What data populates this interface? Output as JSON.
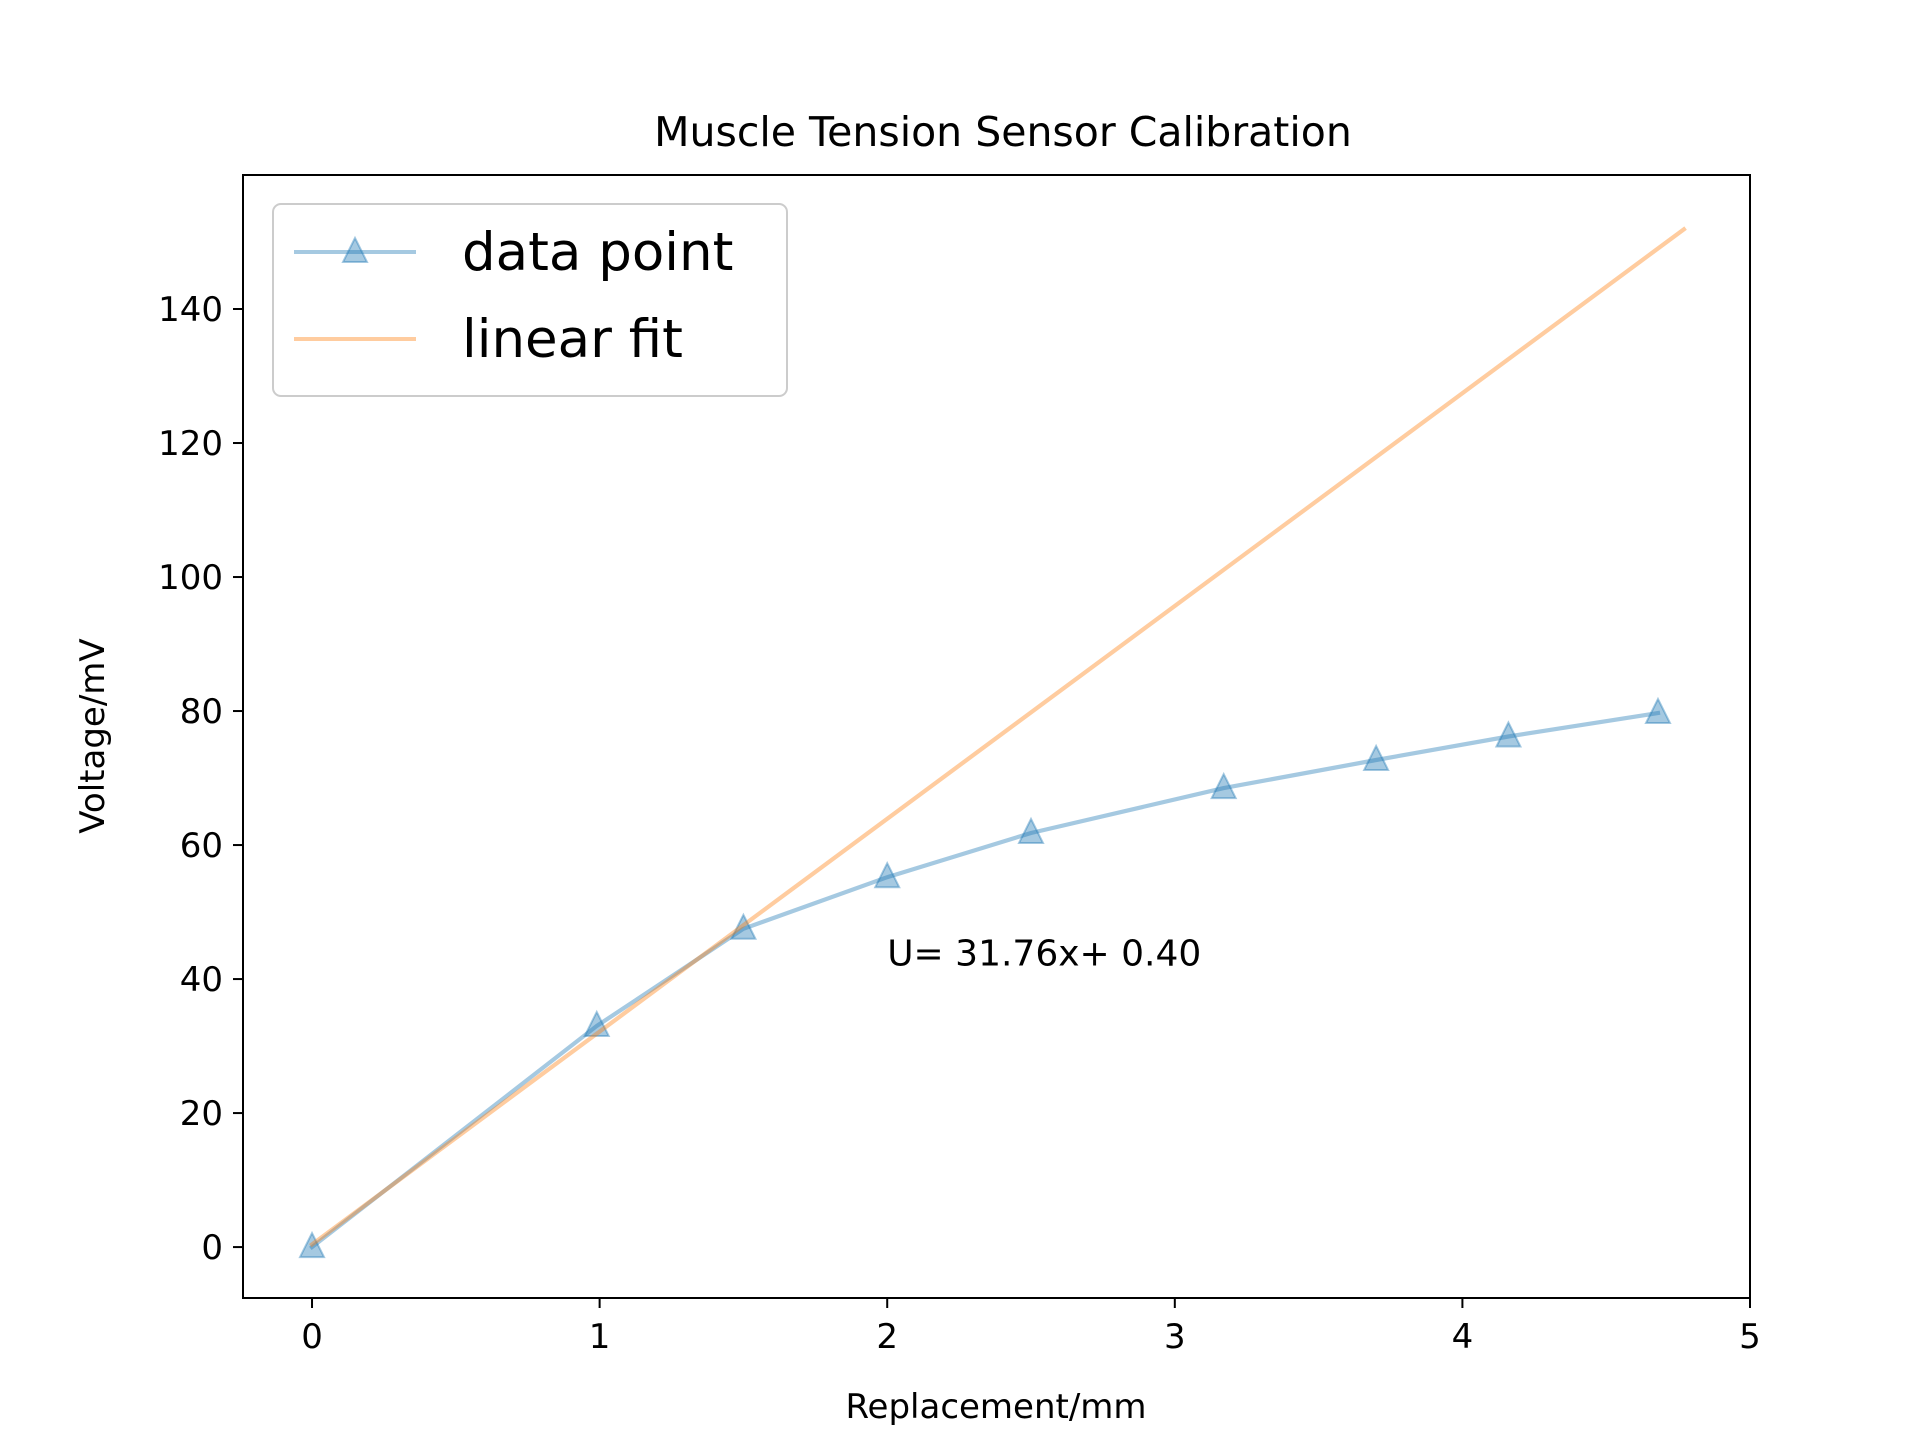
{
  "chart_data": {
    "type": "line",
    "title": "Muscle Tension Sensor Calibration",
    "xlabel": "Replacement/mm",
    "ylabel": "Voltage/mV",
    "xlim": [
      -0.24,
      5.0
    ],
    "ylim": [
      -7.6,
      160.0
    ],
    "x_ticks": [
      0,
      1,
      2,
      3,
      4,
      5
    ],
    "x_tick_labels": [
      "0",
      "1",
      "2",
      "3",
      "4",
      "5"
    ],
    "y_ticks": [
      0,
      20,
      40,
      60,
      80,
      100,
      120,
      140
    ],
    "y_tick_labels": [
      "0",
      "20",
      "40",
      "60",
      "80",
      "100",
      "120",
      "140"
    ],
    "grid": false,
    "legend_position": "top-left",
    "series": [
      {
        "name": "data point",
        "kind": "line-marker",
        "marker": "triangle",
        "color": "#1f77b4",
        "x": [
          0,
          0.99,
          1.5,
          2.0,
          2.5,
          3.17,
          3.7,
          4.16,
          4.68
        ],
        "y": [
          0,
          33,
          47.5,
          55.2,
          61.8,
          68.5,
          72.7,
          76.2,
          79.7
        ]
      },
      {
        "name": "linear fit",
        "kind": "line",
        "color": "#ff7f0e",
        "x": [
          0,
          4.77
        ],
        "y": [
          0.4,
          151.9
        ]
      }
    ],
    "annotations": [
      {
        "text": "U= 31.76x+ 0.40",
        "x": 2.0,
        "y": 42.0
      }
    ]
  }
}
